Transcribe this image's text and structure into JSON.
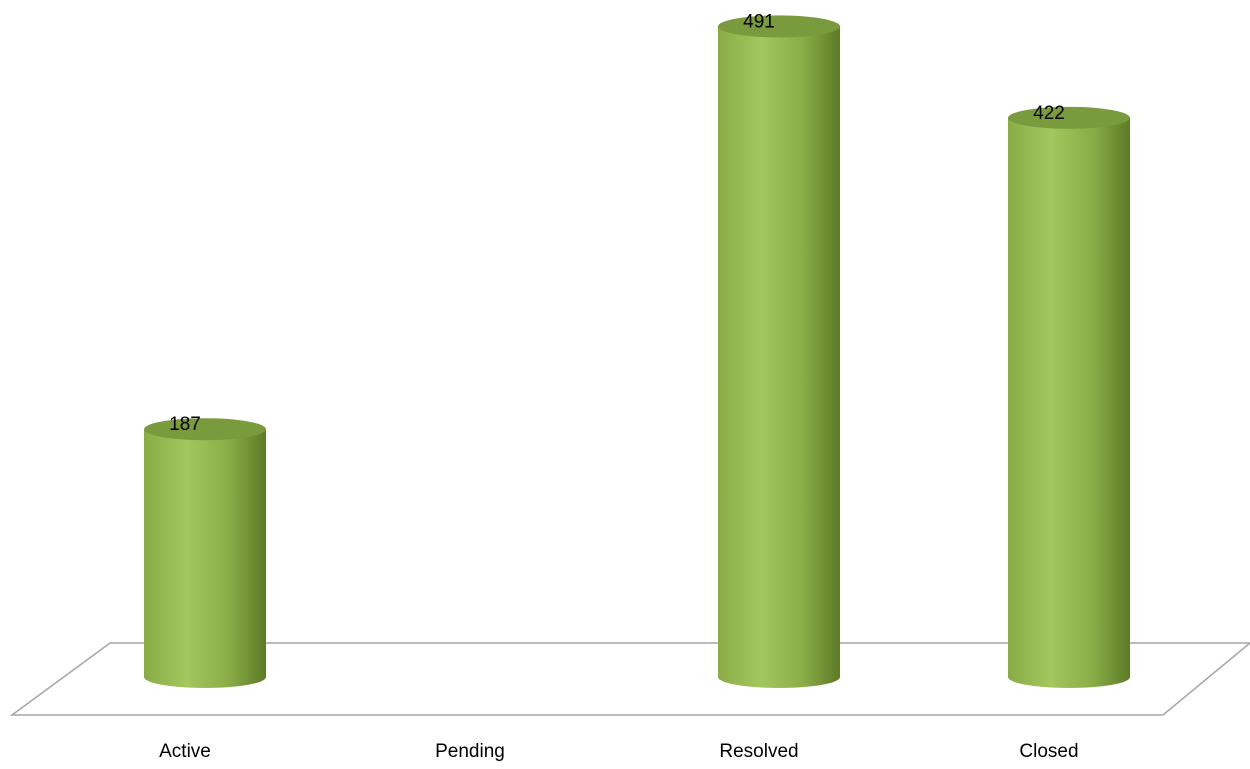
{
  "chart_data": {
    "type": "bar",
    "style": "3d-cylinder",
    "title": "",
    "xlabel": "",
    "ylabel": "",
    "categories": [
      "Active",
      "Pending",
      "Resolved",
      "Closed"
    ],
    "values": [
      187,
      0,
      491,
      422
    ],
    "data_labels": [
      "187",
      "",
      "491",
      "422"
    ],
    "ylim": [
      0,
      500
    ],
    "grid": false,
    "legend": "none",
    "colors": {
      "bar_light": "#a4c65e",
      "bar_mid": "#8aac46",
      "bar_dark": "#5d7a26",
      "bar_top": "#7a9a3e",
      "floor_line": "#a6a6a6"
    }
  }
}
